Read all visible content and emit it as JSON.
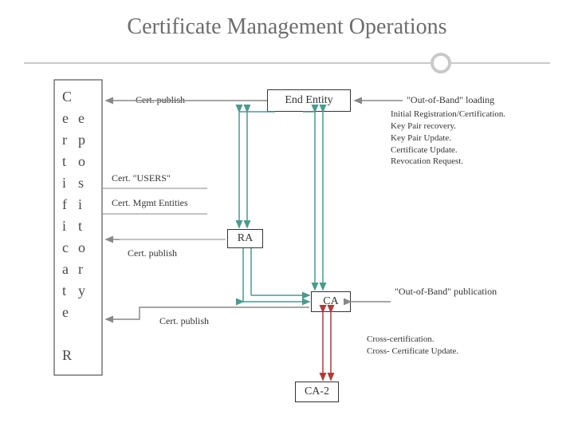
{
  "title": "Certificate Management Operations",
  "vertical_left_1": "Certificate R",
  "vertical_left_2": "epository",
  "labels": {
    "cert_publish_top": "Cert. publish",
    "cert_users": "Cert. \"USERS\"",
    "cert_mgmt": "Cert. Mgmt Entities",
    "cert_publish_mid": "Cert. publish",
    "cert_publish_low": "Cert. publish",
    "oob_loading": "\"Out-of-Band\" loading",
    "oob_publication": "\"Out-of-Band\" publication"
  },
  "boxes": {
    "end_entity": "End Entity",
    "ra": "RA",
    "ca": "CA",
    "ca2": "CA-2"
  },
  "notes_top": [
    "Initial Registration/Certification.",
    "Key Pair recovery.",
    "Key Pair Update.",
    "Certificate Update.",
    "Revocation Request."
  ],
  "notes_bottom": [
    "Cross-certification.",
    "Cross- Certificate Update."
  ],
  "colors": {
    "line_gray": "#c9c9c9",
    "line_teal": "#4a9a8f",
    "line_red": "#b03a3a",
    "text": "#4a4a4a"
  }
}
